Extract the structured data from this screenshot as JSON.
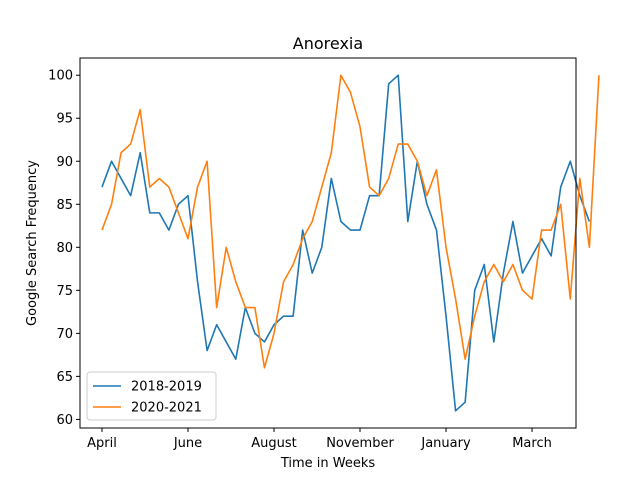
{
  "chart_data": {
    "type": "line",
    "title": "Anorexia",
    "xlabel": "Time in Weeks",
    "ylabel": "Google Search Frequency",
    "x_ticks": [
      {
        "week": 0,
        "label": "April"
      },
      {
        "week": 9,
        "label": "June"
      },
      {
        "week": 18,
        "label": "August"
      },
      {
        "week": 27,
        "label": "November"
      },
      {
        "week": 36,
        "label": "January"
      },
      {
        "week": 45,
        "label": "March"
      }
    ],
    "xlim": [
      -2.3,
      49.6
    ],
    "ylim": [
      59,
      102
    ],
    "yticks": [
      60,
      65,
      70,
      75,
      80,
      85,
      90,
      95,
      100
    ],
    "grid": false,
    "legend_position": "lower-left",
    "series": [
      {
        "name": "2018-2019",
        "color": "#1f77b4",
        "values": [
          87,
          90,
          88,
          86,
          91,
          84,
          84,
          82,
          85,
          86,
          76,
          68,
          71,
          69,
          67,
          73,
          70,
          69,
          71,
          72,
          72,
          82,
          77,
          80,
          88,
          83,
          82,
          82,
          86,
          86,
          99,
          100,
          83,
          90,
          85,
          82,
          72,
          61,
          62,
          75,
          78,
          69,
          77,
          83,
          77,
          79,
          81,
          79,
          87,
          90,
          86,
          83
        ]
      },
      {
        "name": "2020-2021",
        "color": "#ff7f0e",
        "values": [
          82,
          85,
          91,
          92,
          96,
          87,
          88,
          87,
          84,
          81,
          87,
          90,
          73,
          80,
          76,
          73,
          73,
          66,
          70,
          76,
          78,
          81,
          83,
          87,
          91,
          100,
          98,
          94,
          87,
          86,
          88,
          92,
          92,
          90,
          86,
          89,
          80,
          74,
          67,
          72,
          76,
          78,
          76,
          78,
          75,
          74,
          82,
          82,
          85,
          74,
          88,
          80,
          100
        ]
      }
    ]
  }
}
